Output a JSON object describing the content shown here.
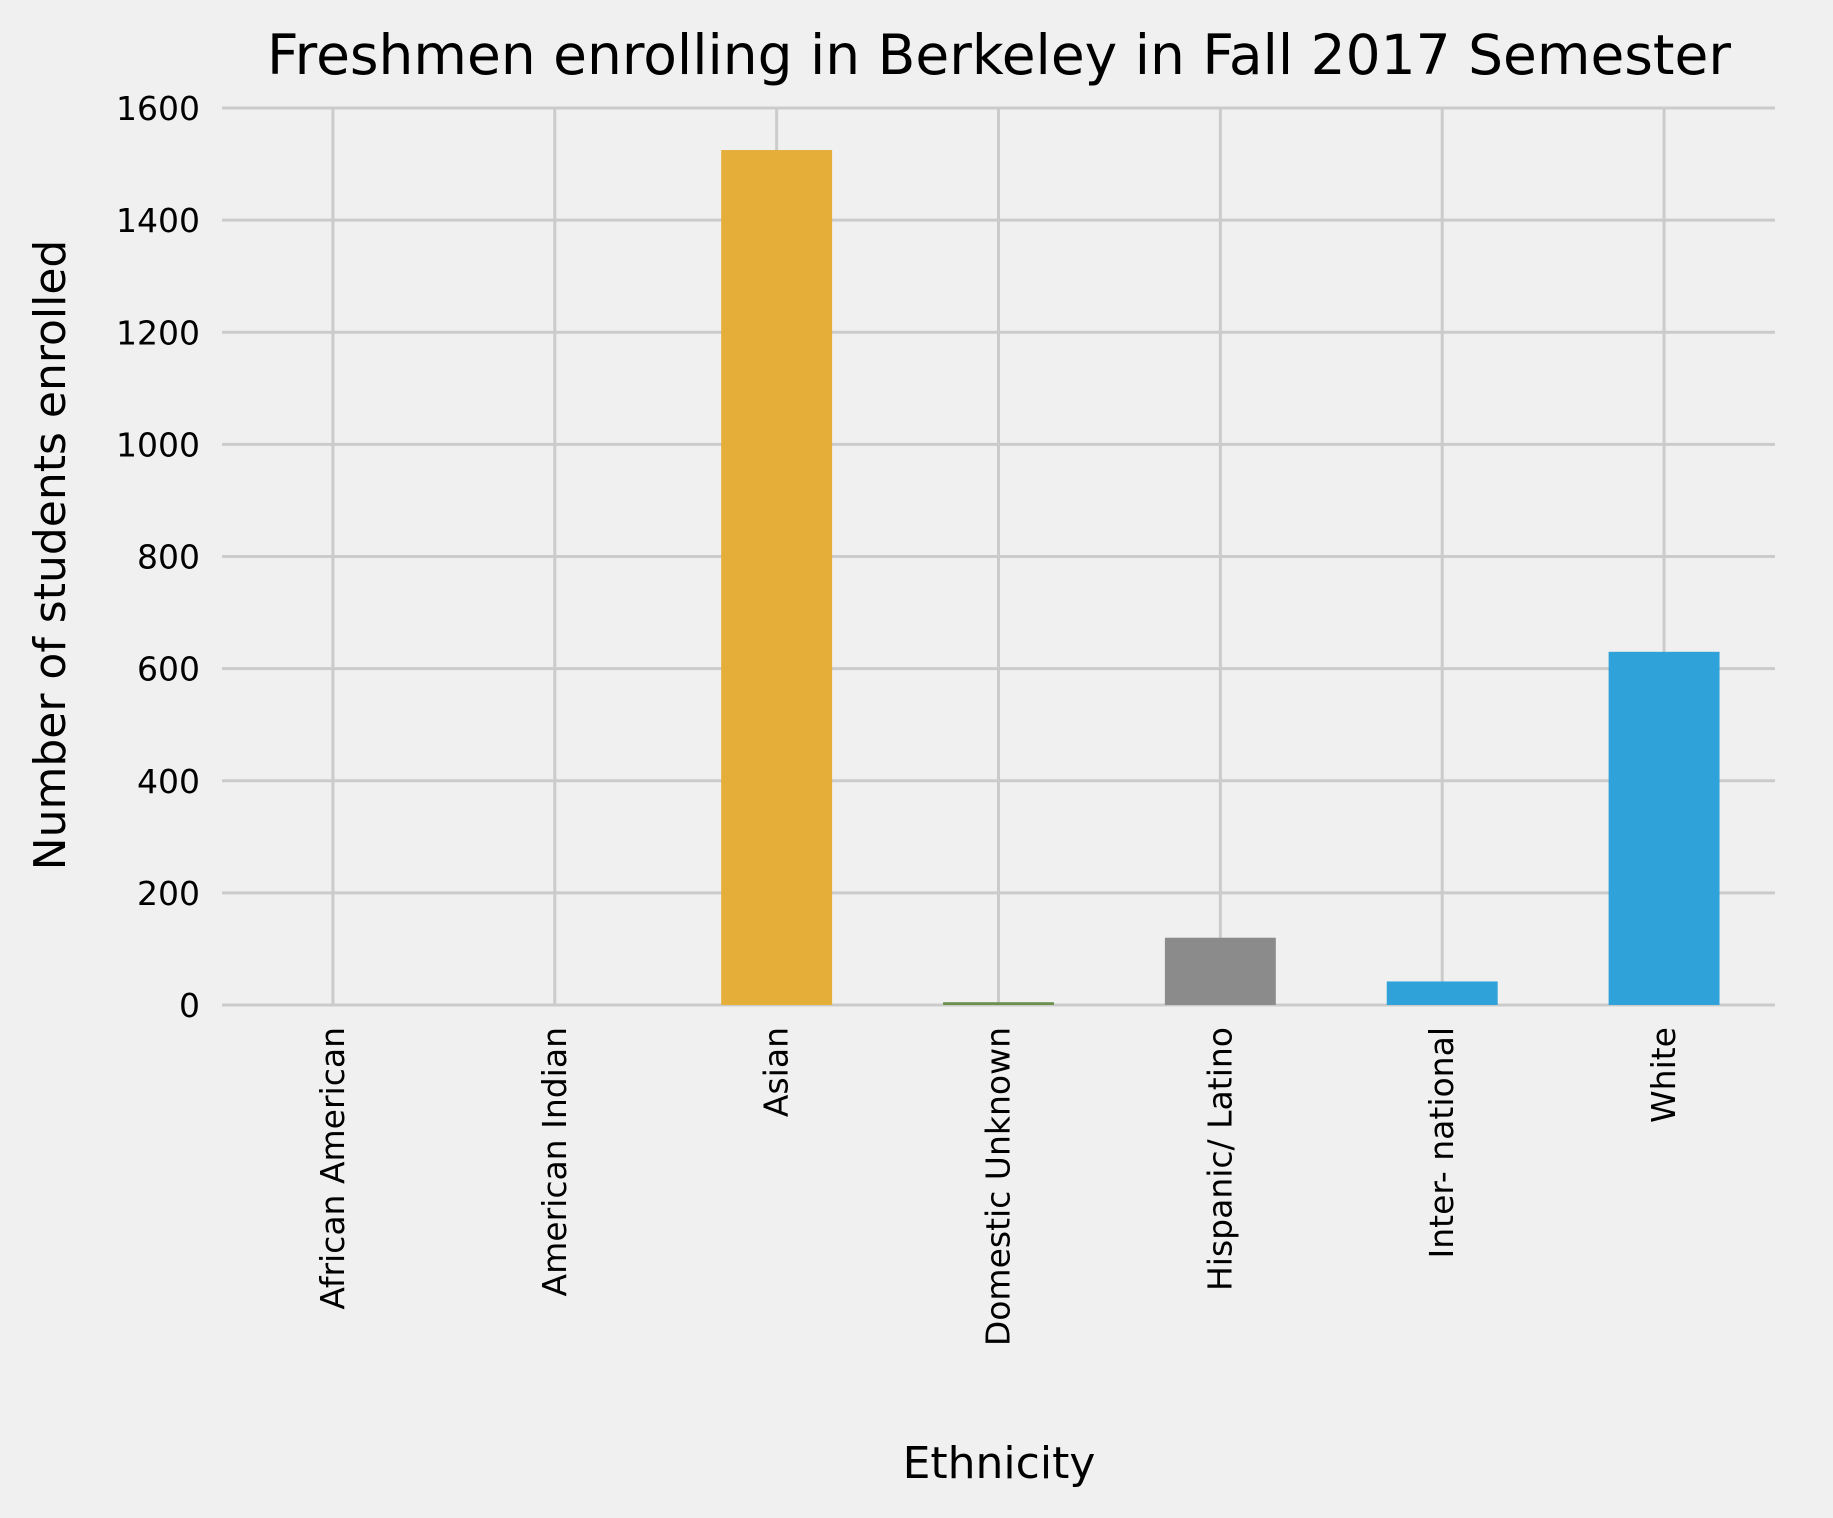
{
  "chart_data": {
    "type": "bar",
    "title": "Freshmen enrolling in Berkeley in Fall 2017 Semester",
    "xlabel": "Ethnicity",
    "ylabel": "Number of students enrolled",
    "categories": [
      "African American",
      "American Indian",
      "Asian",
      "Domestic Unknown",
      "Hispanic/ Latino",
      "Inter- national",
      "White"
    ],
    "values": [
      0,
      0,
      1525,
      5,
      120,
      42,
      630
    ],
    "colors": [
      "#30a2da",
      "#fc4f30",
      "#e5ae38",
      "#6d904f",
      "#8b8b8b",
      "#30a2da",
      "#30a2da"
    ],
    "ylim": [
      0,
      1600
    ],
    "yticks": [
      0,
      200,
      400,
      600,
      800,
      1000,
      1200,
      1400,
      1600
    ],
    "grid": true,
    "background": "#f0f0f0",
    "grid_color": "#cbcbcb"
  }
}
